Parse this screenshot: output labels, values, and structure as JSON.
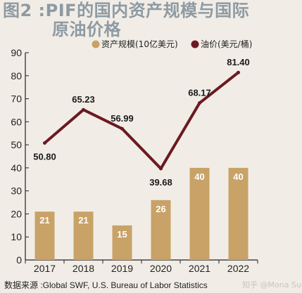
{
  "title_line1": "图2 :PIF的国内资产规模与国际",
  "title_line2": "原油价格",
  "source": "数据来源 :Global SWF, U.S. Bureau of Labor Statistics",
  "watermark": "知乎 @Mona Sun",
  "colors": {
    "bar": "#c9a268",
    "line": "#6b1a22",
    "axis": "#222222",
    "bar_label": "#ffffff"
  },
  "chart_data": {
    "type": "bar+line",
    "categories": [
      "2017",
      "2018",
      "2019",
      "2020",
      "2021",
      "2022"
    ],
    "y_ticks": [
      0,
      10,
      20,
      30,
      40,
      50,
      60,
      70,
      80,
      90
    ],
    "ylim": [
      0,
      90
    ],
    "series": [
      {
        "name": "资产规模(10亿美元)",
        "type": "bar",
        "values": [
          21,
          21,
          15,
          26,
          40,
          40
        ]
      },
      {
        "name": "油价(美元/桶)",
        "type": "line",
        "values": [
          50.8,
          65.23,
          56.99,
          39.68,
          68.17,
          81.4
        ],
        "labels": [
          "50.80",
          "65.23",
          "56.99",
          "39.68",
          "68.17",
          "81.40"
        ]
      }
    ],
    "legend": "top-right"
  }
}
